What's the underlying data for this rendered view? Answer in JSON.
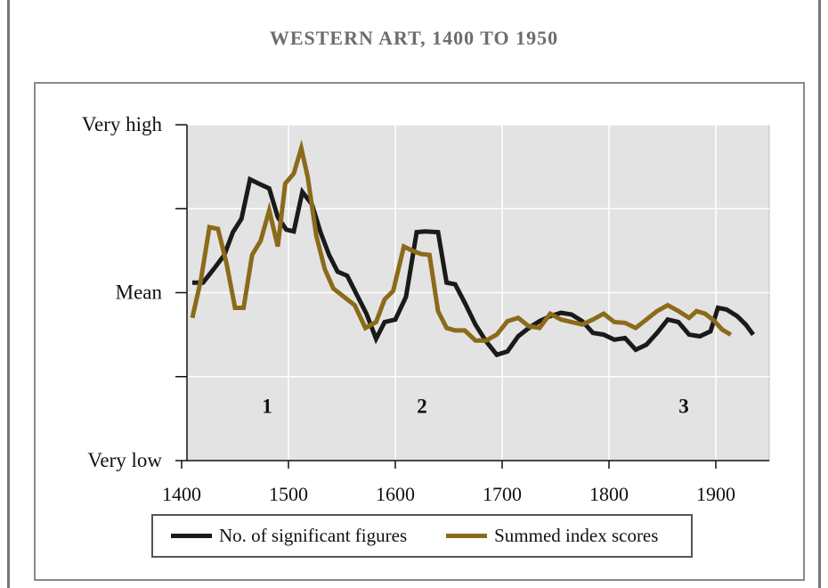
{
  "chart_data": {
    "type": "line",
    "title": "WESTERN ART, 1400 TO 1950",
    "xlabel": "",
    "ylabel": "",
    "xlim": [
      1400,
      1950
    ],
    "ylim": [
      -2,
      2
    ],
    "x_ticks": [
      1400,
      1500,
      1600,
      1700,
      1800,
      1900
    ],
    "y_tick_labels": [
      {
        "value": 2,
        "label": "Very high"
      },
      {
        "value": 0,
        "label": "Mean"
      },
      {
        "value": -2,
        "label": "Very low"
      }
    ],
    "y_minor_ticks": [
      1,
      -1
    ],
    "grid": true,
    "annotations": [
      {
        "label": "1",
        "x": 1480,
        "y": -1.35
      },
      {
        "label": "2",
        "x": 1625,
        "y": -1.35
      },
      {
        "label": "3",
        "x": 1870,
        "y": -1.35
      }
    ],
    "series": [
      {
        "name": "No. of significant figures",
        "color": "#1a1a1a",
        "points": [
          [
            1410,
            0.12
          ],
          [
            1420,
            0.12
          ],
          [
            1430,
            0.28
          ],
          [
            1440,
            0.45
          ],
          [
            1448,
            0.72
          ],
          [
            1456,
            0.88
          ],
          [
            1464,
            1.35
          ],
          [
            1472,
            1.3
          ],
          [
            1482,
            1.24
          ],
          [
            1490,
            0.9
          ],
          [
            1498,
            0.75
          ],
          [
            1505,
            0.73
          ],
          [
            1513,
            1.2
          ],
          [
            1522,
            1.05
          ],
          [
            1530,
            0.72
          ],
          [
            1538,
            0.45
          ],
          [
            1546,
            0.25
          ],
          [
            1555,
            0.2
          ],
          [
            1565,
            -0.05
          ],
          [
            1573,
            -0.25
          ],
          [
            1582,
            -0.55
          ],
          [
            1590,
            -0.35
          ],
          [
            1600,
            -0.32
          ],
          [
            1610,
            -0.05
          ],
          [
            1620,
            0.72
          ],
          [
            1628,
            0.73
          ],
          [
            1640,
            0.72
          ],
          [
            1648,
            0.12
          ],
          [
            1656,
            0.1
          ],
          [
            1665,
            -0.12
          ],
          [
            1675,
            -0.38
          ],
          [
            1685,
            -0.58
          ],
          [
            1695,
            -0.74
          ],
          [
            1705,
            -0.7
          ],
          [
            1715,
            -0.52
          ],
          [
            1725,
            -0.42
          ],
          [
            1735,
            -0.34
          ],
          [
            1745,
            -0.28
          ],
          [
            1755,
            -0.24
          ],
          [
            1765,
            -0.26
          ],
          [
            1775,
            -0.34
          ],
          [
            1785,
            -0.48
          ],
          [
            1795,
            -0.5
          ],
          [
            1805,
            -0.56
          ],
          [
            1815,
            -0.54
          ],
          [
            1825,
            -0.68
          ],
          [
            1835,
            -0.62
          ],
          [
            1845,
            -0.48
          ],
          [
            1855,
            -0.32
          ],
          [
            1865,
            -0.35
          ],
          [
            1875,
            -0.5
          ],
          [
            1885,
            -0.52
          ],
          [
            1895,
            -0.46
          ],
          [
            1902,
            -0.18
          ],
          [
            1910,
            -0.2
          ],
          [
            1920,
            -0.28
          ],
          [
            1928,
            -0.38
          ],
          [
            1935,
            -0.5
          ]
        ]
      },
      {
        "name": "Summed index scores",
        "color": "#8b6a1a",
        "points": [
          [
            1410,
            -0.3
          ],
          [
            1418,
            0.15
          ],
          [
            1426,
            0.78
          ],
          [
            1434,
            0.76
          ],
          [
            1442,
            0.35
          ],
          [
            1450,
            -0.18
          ],
          [
            1458,
            -0.18
          ],
          [
            1466,
            0.45
          ],
          [
            1474,
            0.62
          ],
          [
            1482,
            0.98
          ],
          [
            1490,
            0.55
          ],
          [
            1497,
            1.3
          ],
          [
            1505,
            1.42
          ],
          [
            1512,
            1.72
          ],
          [
            1518,
            1.38
          ],
          [
            1526,
            0.68
          ],
          [
            1534,
            0.28
          ],
          [
            1542,
            0.05
          ],
          [
            1552,
            -0.05
          ],
          [
            1562,
            -0.15
          ],
          [
            1572,
            -0.42
          ],
          [
            1582,
            -0.35
          ],
          [
            1590,
            -0.08
          ],
          [
            1598,
            0.02
          ],
          [
            1608,
            0.55
          ],
          [
            1616,
            0.5
          ],
          [
            1624,
            0.46
          ],
          [
            1632,
            0.45
          ],
          [
            1640,
            -0.22
          ],
          [
            1648,
            -0.42
          ],
          [
            1656,
            -0.45
          ],
          [
            1665,
            -0.45
          ],
          [
            1675,
            -0.57
          ],
          [
            1685,
            -0.57
          ],
          [
            1695,
            -0.5
          ],
          [
            1705,
            -0.34
          ],
          [
            1715,
            -0.3
          ],
          [
            1725,
            -0.4
          ],
          [
            1735,
            -0.42
          ],
          [
            1745,
            -0.25
          ],
          [
            1755,
            -0.32
          ],
          [
            1765,
            -0.35
          ],
          [
            1775,
            -0.38
          ],
          [
            1785,
            -0.32
          ],
          [
            1795,
            -0.25
          ],
          [
            1805,
            -0.35
          ],
          [
            1815,
            -0.36
          ],
          [
            1825,
            -0.42
          ],
          [
            1835,
            -0.32
          ],
          [
            1845,
            -0.22
          ],
          [
            1855,
            -0.15
          ],
          [
            1865,
            -0.22
          ],
          [
            1875,
            -0.3
          ],
          [
            1882,
            -0.22
          ],
          [
            1890,
            -0.25
          ],
          [
            1898,
            -0.33
          ],
          [
            1906,
            -0.44
          ],
          [
            1914,
            -0.5
          ]
        ]
      }
    ]
  }
}
